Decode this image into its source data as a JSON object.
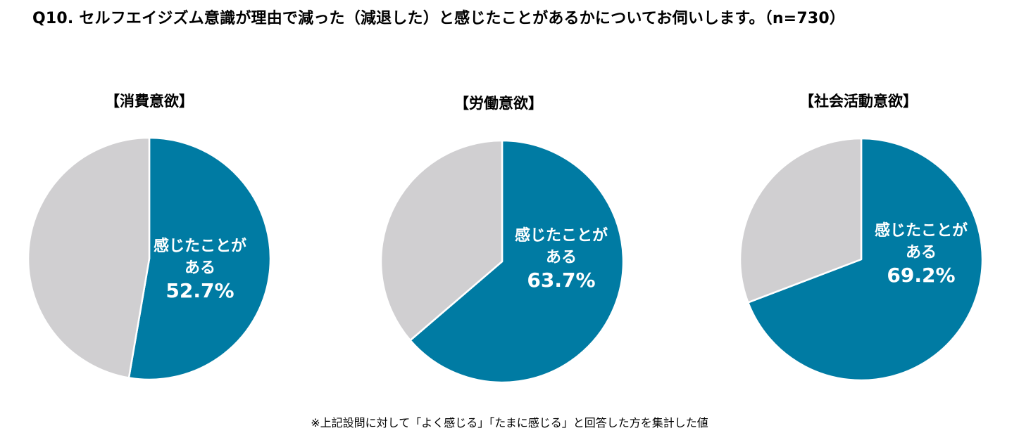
{
  "title": "Q10. セルフエイジズム意識が理由で減った（減退した）と感じたことがあるかについてお伺いします。（n=730）",
  "footnote": "※上記設問に対して「よく感じる」「たまに感じる」と回答した方を集計した値",
  "colors": {
    "felt": "#007ba3",
    "rest": "#d0cfd1",
    "border": "#ffffff"
  },
  "charts": [
    {
      "title": "【消費意欲】",
      "label_line1": "感じたことが",
      "label_line2": "ある",
      "value_text": "52.7%"
    },
    {
      "title": "【労働意欲】",
      "label_line1": "感じたことが",
      "label_line2": "ある",
      "value_text": "63.7%"
    },
    {
      "title": "【社会活動意欲】",
      "label_line1": "感じたことが",
      "label_line2": "ある",
      "value_text": "69.2%"
    }
  ],
  "chart_data": [
    {
      "type": "pie",
      "title": "【消費意欲】",
      "slices": [
        {
          "label": "感じたことがある",
          "value": 52.7
        },
        {
          "label": "",
          "value": 47.3
        }
      ]
    },
    {
      "type": "pie",
      "title": "【労働意欲】",
      "slices": [
        {
          "label": "感じたことがある",
          "value": 63.7
        },
        {
          "label": "",
          "value": 36.3
        }
      ]
    },
    {
      "type": "pie",
      "title": "【社会活動意欲】",
      "slices": [
        {
          "label": "感じたことがある",
          "value": 69.2
        },
        {
          "label": "",
          "value": 30.8
        }
      ]
    }
  ]
}
